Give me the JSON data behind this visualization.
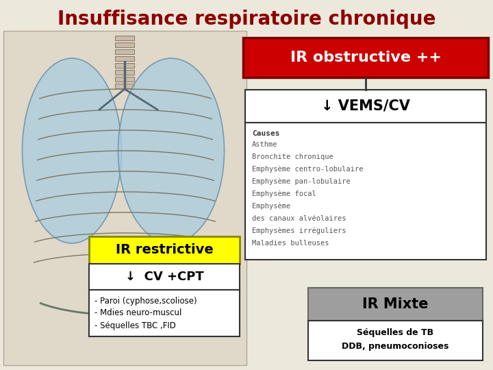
{
  "title": "Insuffisance respiratoire chronique",
  "title_color": "#8B0000",
  "title_fontsize": 20,
  "bg_color": "#EDE8DC",
  "lung_bg": "#E0D8C8",
  "ir_obstructive_text": "IR obstructive ++",
  "ir_obstructive_bg": "#CC0000",
  "ir_obstructive_fg": "#FFFFFF",
  "vems_cv_text": "↓ VEMS/CV",
  "causes_header": "Causes",
  "causes_list": [
    "Asthme",
    "Bronchite chronique",
    "Emphysème centro-lobulaire",
    "Emphysème pan-lobulaire",
    "Emphysème focal",
    "Emphysème",
    "des canaux alvéolaires",
    "Emphysèmes irréguliers",
    "Maladies bulleuses"
  ],
  "ir_restrictive_text": "IR restrictive",
  "ir_restrictive_bg": "#FFFF00",
  "ir_restrictive_fg": "#000000",
  "cv_cpt_text": "↓  CV +CPT",
  "paroi_lines": [
    "- Paroi (cyphose,scoliose)",
    "- Mdies neuro-muscul",
    "- Séquelles TBC ,FID"
  ],
  "ir_mixte_text": "IR Mixte",
  "ir_mixte_bg": "#9E9E9E",
  "ir_mixte_fg": "#000000",
  "sequelles_lines": [
    "Séquelles de TB",
    "DDB, pneumoconioses"
  ]
}
